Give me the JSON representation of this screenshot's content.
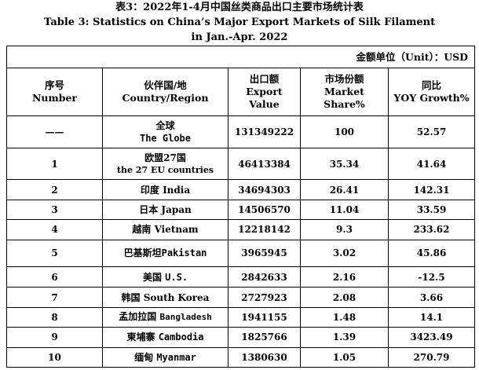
{
  "title": {
    "zh": "表3：2022年1-4月中国丝类商品出口主要市场统计表",
    "en_line1": "Table 3: Statistics on China’s Major Export Markets of Silk Filament",
    "en_line2": "in Jan.-Apr. 2022"
  },
  "unit": "金额单位（Unit）：USD",
  "headers": {
    "number": {
      "zh": "序号",
      "en": "Number"
    },
    "region": {
      "zh": "伙伴国/地",
      "en": "Country/Region"
    },
    "export": {
      "zh": "出口额",
      "en": "Export Value"
    },
    "share": {
      "zh": "市场份额",
      "en": "Market Share%"
    },
    "growth": {
      "zh": "同比",
      "en": "YOY Growth%"
    }
  },
  "rows": [
    {
      "no": "——",
      "zh": "全球",
      "en": "The Globe",
      "export": "131349222",
      "share": "100",
      "growth": "52.57"
    },
    {
      "no": "1",
      "zh": "欧盟27国",
      "en": "the 27 EU countries",
      "export": "46413384",
      "share": "35.34",
      "growth": "41.64"
    },
    {
      "no": "2",
      "zh": "印度",
      "en": "India",
      "export": "34694303",
      "share": "26.41",
      "growth": "142.31"
    },
    {
      "no": "3",
      "zh": "日本",
      "en": "Japan",
      "export": "14506570",
      "share": "11.04",
      "growth": "33.59"
    },
    {
      "no": "4",
      "zh": "越南",
      "en": "Vietnam",
      "export": "12218142",
      "share": "9.3",
      "growth": "233.62"
    },
    {
      "no": "5",
      "zh": "巴基斯坦",
      "en": "Pakistan",
      "export": "3965945",
      "share": "3.02",
      "growth": "45.86"
    },
    {
      "no": "6",
      "zh": "美国",
      "en": "U.S.",
      "export": "2842633",
      "share": "2.16",
      "growth": "-12.5"
    },
    {
      "no": "7",
      "zh": "韩国",
      "en": "South Korea",
      "export": "2727923",
      "share": "2.08",
      "growth": "3.66"
    },
    {
      "no": "8",
      "zh": "孟加拉国",
      "en": "Bangladesh",
      "export": "1941155",
      "share": "1.48",
      "growth": "14.1"
    },
    {
      "no": "9",
      "zh": "柬埔寨",
      "en": "Cambodia",
      "export": "1825766",
      "share": "1.39",
      "growth": "3423.49"
    },
    {
      "no": "10",
      "zh": "缅甸",
      "en": "Myanmar",
      "export": "1380630",
      "share": "1.05",
      "growth": "270.79"
    }
  ]
}
